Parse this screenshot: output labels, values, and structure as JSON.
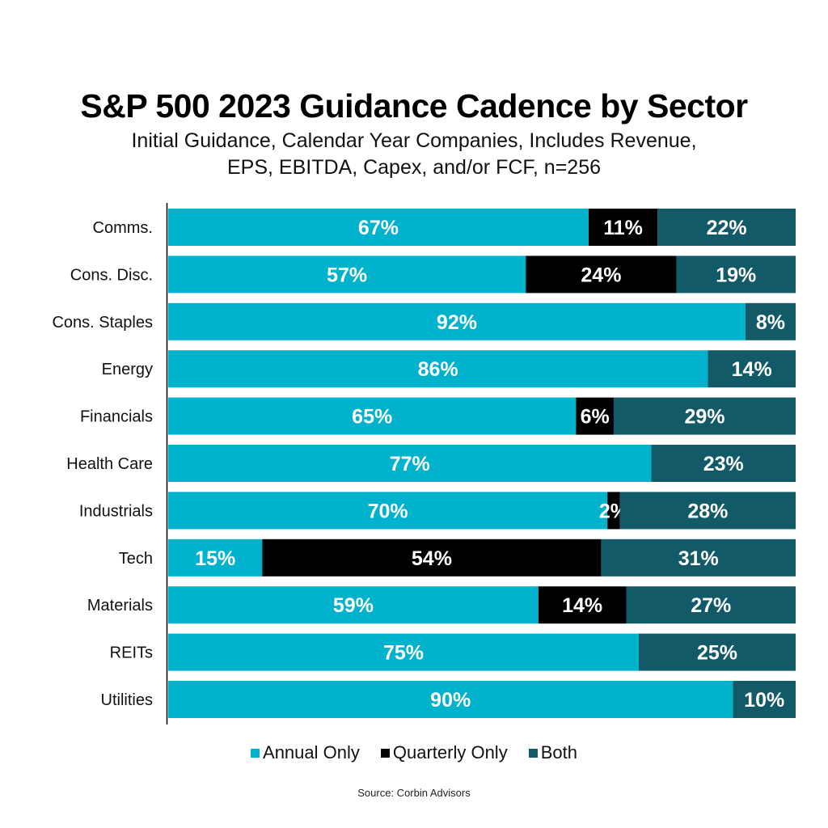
{
  "chart_data": {
    "type": "bar",
    "orientation": "horizontal",
    "stacked": true,
    "title": "S&P 500 2023 Guidance Cadence by Sector",
    "subtitle_lines": [
      "Initial Guidance, Calendar Year Companies, Includes Revenue,",
      "EPS, EBITDA, Capex, and/or FCF, n=256"
    ],
    "xlabel": "",
    "ylabel": "",
    "xlim": [
      0,
      100
    ],
    "grid": false,
    "legend_position": "bottom",
    "categories": [
      "Comms.",
      "Cons. Disc.",
      "Cons. Staples",
      "Energy",
      "Financials",
      "Health Care",
      "Industrials",
      "Tech",
      "Materials",
      "REITs",
      "Utilities"
    ],
    "series": [
      {
        "name": "Annual Only",
        "color": "#00B2CC",
        "values": [
          67,
          57,
          92,
          86,
          65,
          77,
          70,
          15,
          59,
          75,
          90
        ]
      },
      {
        "name": "Quarterly Only",
        "color": "#000000",
        "values": [
          11,
          24,
          0,
          0,
          6,
          0,
          2,
          54,
          14,
          0,
          0
        ]
      },
      {
        "name": "Both",
        "color": "#135A69",
        "values": [
          22,
          19,
          8,
          14,
          29,
          23,
          28,
          31,
          27,
          25,
          10
        ]
      }
    ],
    "value_label_suffix": "%",
    "source": "Source: Corbin Advisors"
  }
}
